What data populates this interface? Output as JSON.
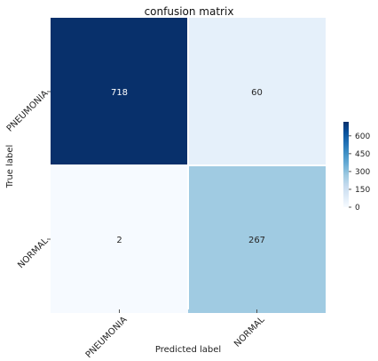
{
  "chart_data": {
    "type": "heatmap",
    "title": "confusion matrix",
    "xlabel": "Predicted label",
    "ylabel": "True label",
    "x_categories": [
      "PNEUMONIA",
      "NORMAL"
    ],
    "y_categories": [
      "PNEUMONIA",
      "NORMAL"
    ],
    "values": [
      [
        718,
        60
      ],
      [
        2,
        267
      ]
    ],
    "colormap": "Blues",
    "colorbar": {
      "vmin": 0,
      "vmax": 718,
      "ticks": [
        0,
        150,
        300,
        450,
        600
      ]
    },
    "colors": {
      "cell_718": "#08306b",
      "cell_60": "#e5f0fa",
      "cell_2": "#f6faff",
      "cell_267": "#a0cbe2",
      "text_dark_bg": "#ffffff",
      "text_light_bg": "#262626"
    },
    "grid": false
  }
}
